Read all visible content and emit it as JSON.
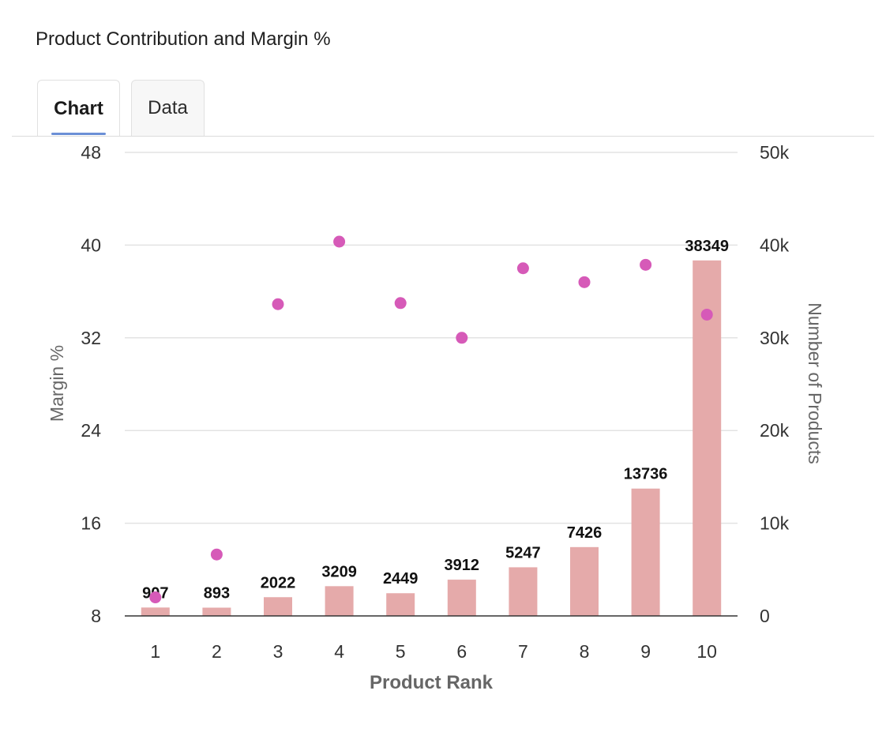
{
  "panel": {
    "title": "Product Contribution and Margin %"
  },
  "tabs": [
    {
      "label": "Chart",
      "active": true
    },
    {
      "label": "Data",
      "active": false
    }
  ],
  "chart_data": {
    "type": "bar",
    "title": "",
    "xlabel": "Product Rank",
    "categories": [
      "1",
      "2",
      "3",
      "4",
      "5",
      "6",
      "7",
      "8",
      "9",
      "10"
    ],
    "y_left": {
      "label": "Margin %",
      "min": 8,
      "max": 48,
      "ticks": [
        8,
        16,
        24,
        32,
        40,
        48
      ],
      "tick_labels": [
        "8",
        "16",
        "24",
        "32",
        "40",
        "48"
      ]
    },
    "y_right": {
      "label": "Number of Products",
      "min": 0,
      "max": 50000,
      "ticks": [
        0,
        10000,
        20000,
        30000,
        40000,
        50000
      ],
      "tick_labels": [
        "0",
        "10k",
        "20k",
        "30k",
        "40k",
        "50k"
      ]
    },
    "series": [
      {
        "type": "bar",
        "axis": "right",
        "color": "#e5aaaa",
        "values": [
          907,
          893,
          2022,
          3209,
          2449,
          3912,
          5247,
          7426,
          13736,
          38349
        ],
        "labels": [
          "907",
          "893",
          "2022",
          "3209",
          "2449",
          "3912",
          "5247",
          "7426",
          "13736",
          "38349"
        ]
      },
      {
        "type": "scatter",
        "axis": "left",
        "color": "#d65ab8",
        "values": [
          9.6,
          13.3,
          34.9,
          40.3,
          35.0,
          32.0,
          38.0,
          36.8,
          38.3,
          34.0
        ]
      }
    ],
    "grid": true,
    "legend": "none"
  }
}
